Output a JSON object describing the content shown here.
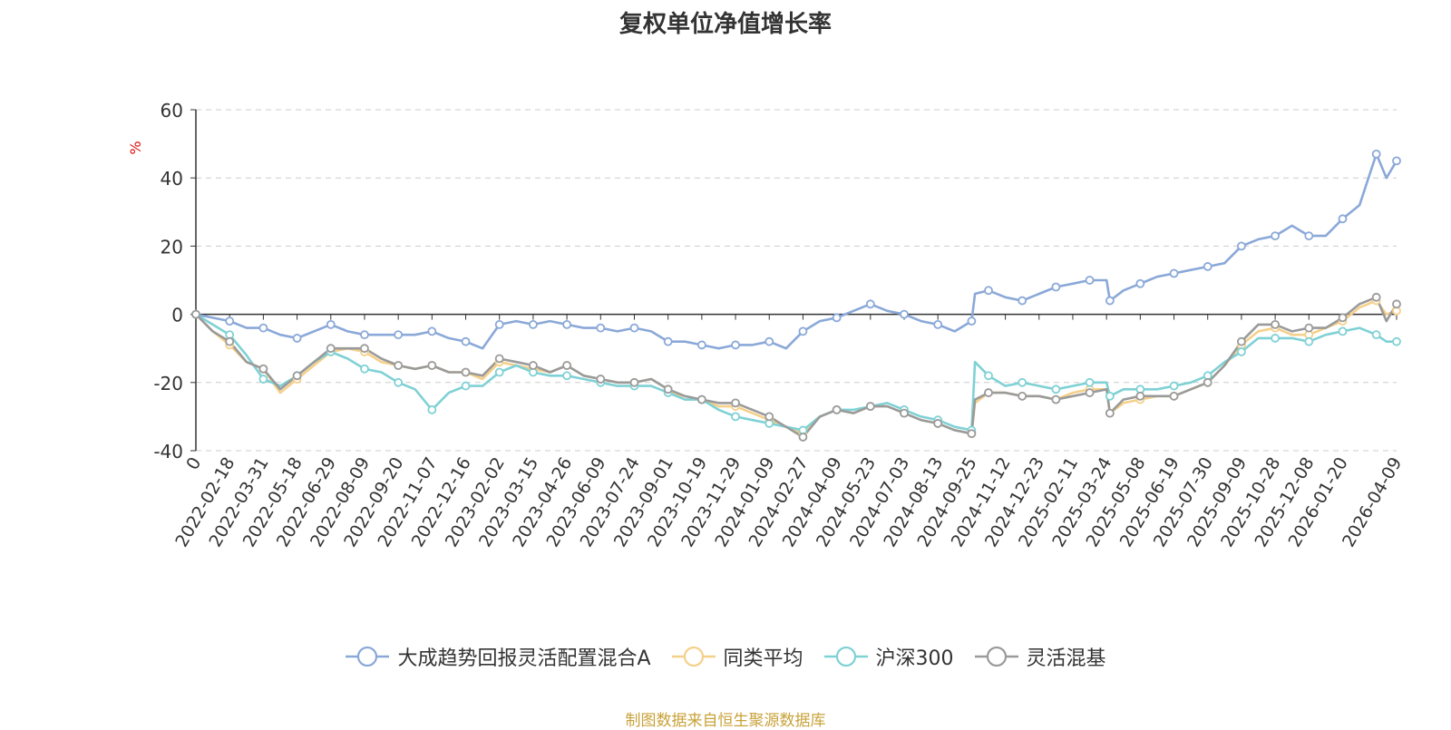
{
  "chart_data": {
    "type": "line",
    "title": "复权单位净值增长率",
    "ylabel": "%",
    "ylim": [
      -40,
      60
    ],
    "yticks": [
      "60",
      "40",
      "20",
      "0",
      "-20",
      "-40"
    ],
    "ytick_values": [
      60,
      40,
      20,
      0,
      -20,
      -40
    ],
    "x_tick_labels": [
      "0",
      "2022-02-18",
      "2022-03-31",
      "2022-05-18",
      "2022-06-29",
      "2022-08-09",
      "2022-09-20",
      "2022-11-07",
      "2022-12-16",
      "2023-02-02",
      "2023-03-15",
      "2023-04-26",
      "2023-06-09",
      "2023-07-24",
      "2023-09-01",
      "2023-10-19",
      "2023-11-29",
      "2024-01-09",
      "2024-02-27",
      "2024-04-09",
      "2024-05-23",
      "2024-07-03",
      "2024-08-13",
      "2024-09-25",
      "2024-11-12",
      "2024-12-23",
      "2025-02-11",
      "2025-03-24",
      "2025-05-08",
      "2025-06-19",
      "2025-07-30",
      "2025-09-09",
      "2025-10-28",
      "2025-12-08",
      "2026-01-20",
      "2026-04-09"
    ],
    "x_tick_positions": [
      0,
      1,
      2,
      3,
      4,
      5,
      6,
      7,
      8,
      9,
      10,
      11,
      12,
      13,
      14,
      15,
      16,
      17,
      18,
      19,
      20,
      21,
      22,
      23,
      24,
      25,
      26,
      27,
      28,
      29,
      30,
      31,
      32,
      33,
      34,
      35.6
    ],
    "grid": true,
    "legend_position": "bottom",
    "series": [
      {
        "name": "大成趋势回报灵活配置混合A",
        "color": "#8aa8d8",
        "x": [
          0,
          0.5,
          1,
          1.5,
          2,
          2.5,
          3,
          3.5,
          4,
          4.5,
          5,
          5.5,
          6,
          6.5,
          7,
          7.5,
          8,
          8.5,
          9,
          9.5,
          10,
          10.5,
          11,
          11.5,
          12,
          12.5,
          13,
          13.5,
          14,
          14.5,
          15,
          15.5,
          16,
          16.5,
          17,
          17.5,
          18,
          18.5,
          19,
          19.5,
          20,
          20.5,
          21,
          21.5,
          22,
          22.5,
          23,
          23.1,
          23.5,
          24,
          24.5,
          25,
          25.5,
          26,
          26.5,
          27,
          27.1,
          27.5,
          28,
          28.5,
          29,
          29.5,
          30,
          30.5,
          31,
          31.5,
          32,
          32.5,
          33,
          33.5,
          34,
          34.5,
          35,
          35.3,
          35.6
        ],
        "values": [
          0,
          -1,
          -2,
          -4,
          -4,
          -6,
          -7,
          -5,
          -3,
          -5,
          -6,
          -6,
          -6,
          -6,
          -5,
          -7,
          -8,
          -10,
          -3,
          -2,
          -3,
          -2,
          -3,
          -4,
          -4,
          -5,
          -4,
          -5,
          -8,
          -8,
          -9,
          -10,
          -9,
          -9,
          -8,
          -10,
          -5,
          -2,
          -1,
          1,
          3,
          1,
          0,
          -2,
          -3,
          -5,
          -2,
          6,
          7,
          5,
          4,
          6,
          8,
          9,
          10,
          10,
          4,
          7,
          9,
          11,
          12,
          13,
          14,
          15,
          20,
          22,
          23,
          26,
          23,
          23,
          28,
          32,
          47,
          40,
          45
        ]
      },
      {
        "name": "同类平均",
        "color": "#f5d08a",
        "x": [
          0,
          0.5,
          1,
          1.5,
          2,
          2.5,
          3,
          3.5,
          4,
          4.5,
          5,
          5.5,
          6,
          6.5,
          7,
          7.5,
          8,
          8.5,
          9,
          9.5,
          10,
          10.5,
          11,
          11.5,
          12,
          12.5,
          13,
          13.5,
          14,
          14.5,
          15,
          15.5,
          16,
          16.5,
          17,
          17.5,
          18,
          18.5,
          19,
          19.5,
          20,
          20.5,
          21,
          21.5,
          22,
          22.5,
          23,
          23.1,
          23.5,
          24,
          24.5,
          25,
          25.5,
          26,
          26.5,
          27,
          27.1,
          27.5,
          28,
          28.5,
          29,
          29.5,
          30,
          30.5,
          31,
          31.5,
          32,
          32.5,
          33,
          33.5,
          34,
          34.5,
          35,
          35.3,
          35.6
        ],
        "values": [
          0,
          -5,
          -9,
          -14,
          -16,
          -23,
          -19,
          -15,
          -11,
          -10,
          -11,
          -14,
          -15,
          -16,
          -15,
          -17,
          -17,
          -19,
          -14,
          -15,
          -16,
          -17,
          -15,
          -18,
          -19,
          -20,
          -20,
          -19,
          -22,
          -25,
          -25,
          -27,
          -27,
          -29,
          -31,
          -33,
          -35,
          -30,
          -28,
          -29,
          -27,
          -27,
          -29,
          -31,
          -32,
          -34,
          -35,
          -26,
          -23,
          -23,
          -24,
          -24,
          -25,
          -23,
          -22,
          -22,
          -29,
          -26,
          -25,
          -24,
          -24,
          -22,
          -20,
          -15,
          -9,
          -5,
          -4,
          -6,
          -6,
          -4,
          -2,
          2,
          4,
          0,
          1
        ]
      },
      {
        "name": "沪深300",
        "color": "#7fd1d5",
        "x": [
          0,
          0.5,
          1,
          1.5,
          2,
          2.5,
          3,
          3.5,
          4,
          4.5,
          5,
          5.5,
          6,
          6.5,
          7,
          7.5,
          8,
          8.5,
          9,
          9.5,
          10,
          10.5,
          11,
          11.5,
          12,
          12.5,
          13,
          13.5,
          14,
          14.5,
          15,
          15.5,
          16,
          16.5,
          17,
          17.5,
          18,
          18.5,
          19,
          19.5,
          20,
          20.5,
          21,
          21.5,
          22,
          22.5,
          23,
          23.1,
          23.5,
          24,
          24.5,
          25,
          25.5,
          26,
          26.5,
          27,
          27.1,
          27.5,
          28,
          28.5,
          29,
          29.5,
          30,
          30.5,
          31,
          31.5,
          32,
          32.5,
          33,
          33.5,
          34,
          34.5,
          35,
          35.3,
          35.6
        ],
        "values": [
          0,
          -3,
          -6,
          -12,
          -19,
          -21,
          -18,
          -14,
          -11,
          -13,
          -16,
          -17,
          -20,
          -22,
          -28,
          -23,
          -21,
          -21,
          -17,
          -15,
          -17,
          -18,
          -18,
          -19,
          -20,
          -21,
          -21,
          -21,
          -23,
          -25,
          -25,
          -28,
          -30,
          -31,
          -32,
          -33,
          -34,
          -30,
          -28,
          -28,
          -27,
          -26,
          -28,
          -30,
          -31,
          -33,
          -34,
          -14,
          -18,
          -21,
          -20,
          -21,
          -22,
          -21,
          -20,
          -20,
          -24,
          -22,
          -22,
          -22,
          -21,
          -20,
          -18,
          -14,
          -11,
          -7,
          -7,
          -7,
          -8,
          -6,
          -5,
          -4,
          -6,
          -8,
          -8
        ]
      },
      {
        "name": "灵活混基",
        "color": "#9a9a9a",
        "x": [
          0,
          0.5,
          1,
          1.5,
          2,
          2.5,
          3,
          3.5,
          4,
          4.5,
          5,
          5.5,
          6,
          6.5,
          7,
          7.5,
          8,
          8.5,
          9,
          9.5,
          10,
          10.5,
          11,
          11.5,
          12,
          12.5,
          13,
          13.5,
          14,
          14.5,
          15,
          15.5,
          16,
          16.5,
          17,
          17.5,
          18,
          18.5,
          19,
          19.5,
          20,
          20.5,
          21,
          21.5,
          22,
          22.5,
          23,
          23.1,
          23.5,
          24,
          24.5,
          25,
          25.5,
          26,
          26.5,
          27,
          27.1,
          27.5,
          28,
          28.5,
          29,
          29.5,
          30,
          30.5,
          31,
          31.5,
          32,
          32.5,
          33,
          33.5,
          34,
          34.5,
          35,
          35.3,
          35.6
        ],
        "values": [
          0,
          -5,
          -8,
          -14,
          -16,
          -22,
          -18,
          -14,
          -10,
          -10,
          -10,
          -13,
          -15,
          -16,
          -15,
          -17,
          -17,
          -18,
          -13,
          -14,
          -15,
          -17,
          -15,
          -18,
          -19,
          -20,
          -20,
          -19,
          -22,
          -24,
          -25,
          -26,
          -26,
          -28,
          -30,
          -33,
          -36,
          -30,
          -28,
          -29,
          -27,
          -27,
          -29,
          -31,
          -32,
          -34,
          -35,
          -25,
          -23,
          -23,
          -24,
          -24,
          -25,
          -24,
          -23,
          -22,
          -29,
          -25,
          -24,
          -24,
          -24,
          -22,
          -20,
          -15,
          -8,
          -3,
          -3,
          -5,
          -4,
          -4,
          -1,
          3,
          5,
          -2,
          3
        ]
      }
    ]
  },
  "source_text": "制图数据来自恒生聚源数据库"
}
